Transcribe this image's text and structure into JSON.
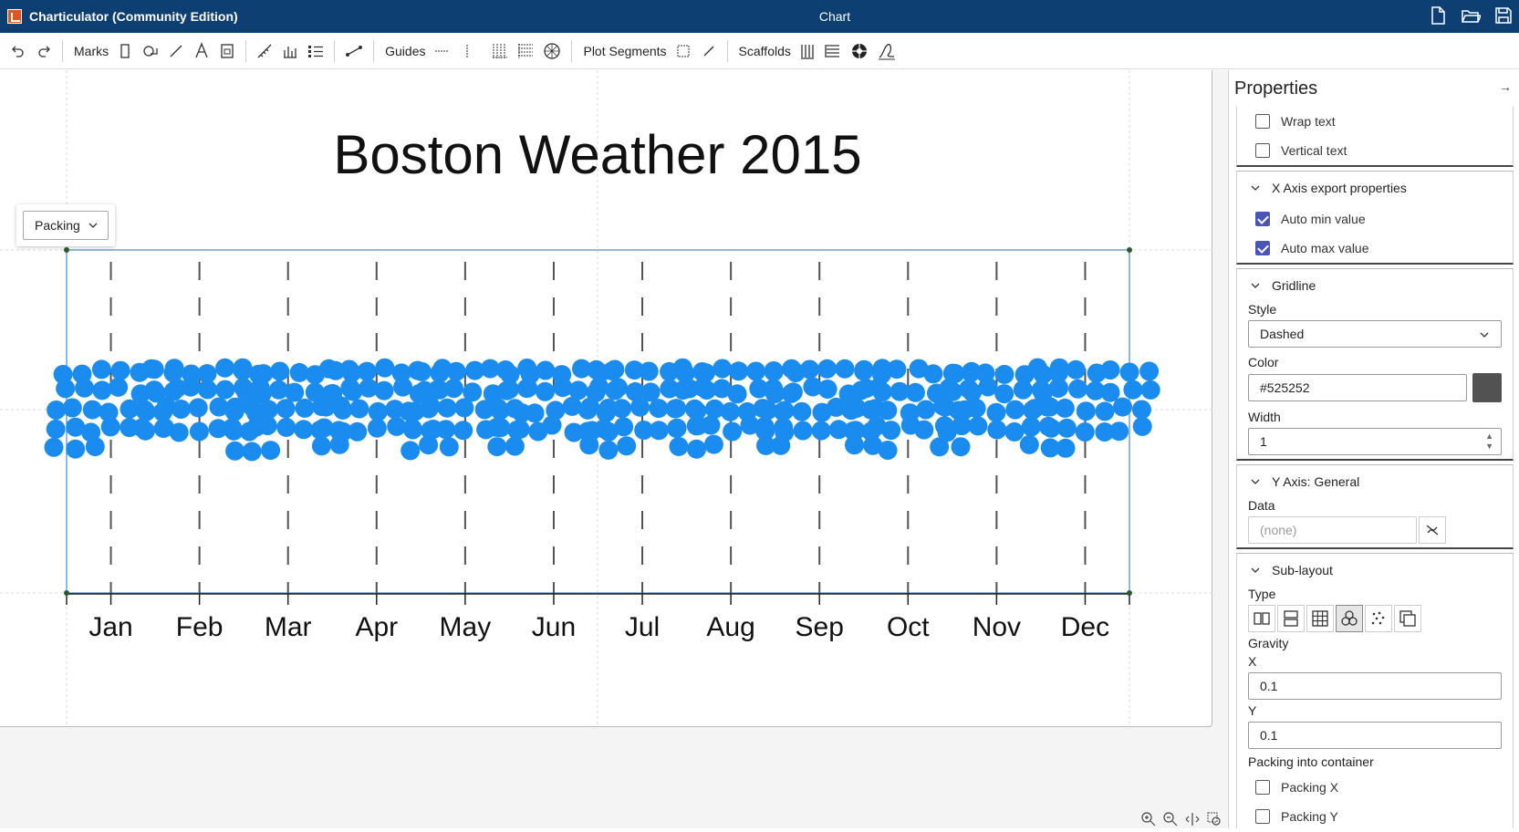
{
  "app": {
    "title": "Charticulator (Community Edition)",
    "document_title": "Chart"
  },
  "toolbar": {
    "marks_label": "Marks",
    "guides_label": "Guides",
    "plot_segments_label": "Plot Segments",
    "scaffolds_label": "Scaffolds"
  },
  "canvas": {
    "packing_dropdown": "Packing"
  },
  "chart_data": {
    "type": "scatter",
    "title": "Boston Weather 2015",
    "layout": "packing",
    "gridline_style": "dashed",
    "categories": [
      "Jan",
      "Feb",
      "Mar",
      "Apr",
      "May",
      "Jun",
      "Jul",
      "Aug",
      "Sep",
      "Oct",
      "Nov",
      "Dec"
    ],
    "values": [
      31,
      28,
      31,
      30,
      31,
      30,
      31,
      31,
      30,
      31,
      30,
      31
    ],
    "mark_color": "#1a8cf0",
    "gridline_color": "#525252"
  },
  "properties": {
    "header": "Properties",
    "text_options": {
      "wrap_text": "Wrap text",
      "vertical_text": "Vertical text"
    },
    "x_axis_export": {
      "title": "X Axis export properties",
      "auto_min": "Auto min value",
      "auto_max": "Auto max value"
    },
    "gridline": {
      "title": "Gridline",
      "style_label": "Style",
      "style_value": "Dashed",
      "color_label": "Color",
      "color_value": "#525252",
      "width_label": "Width",
      "width_value": "1"
    },
    "y_axis": {
      "title": "Y Axis: General",
      "data_label": "Data",
      "data_placeholder": "(none)"
    },
    "sublayout": {
      "title": "Sub-layout",
      "type_label": "Type",
      "gravity_label": "Gravity",
      "x_label": "X",
      "x_value": "0.1",
      "y_label": "Y",
      "y_value": "0.1",
      "packing_label": "Packing into container",
      "packing_x": "Packing X",
      "packing_y": "Packing Y"
    }
  }
}
